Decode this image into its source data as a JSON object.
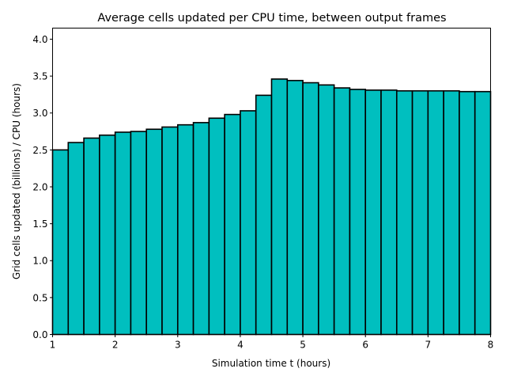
{
  "chart_data": {
    "type": "bar",
    "title": "Average cells updated per CPU time, between output frames",
    "xlabel": "Simulation time t (hours)",
    "ylabel": "Grid cells updated (billions) / CPU (hours)",
    "xlim": [
      1,
      8
    ],
    "ylim": [
      0,
      4.15
    ],
    "xticks": [
      "1",
      "2",
      "3",
      "4",
      "5",
      "6",
      "7",
      "8"
    ],
    "yticks": [
      "0.0",
      "0.5",
      "1.0",
      "1.5",
      "2.0",
      "2.5",
      "3.0",
      "3.5",
      "4.0"
    ],
    "bin_width": 0.25,
    "x": [
      1.0,
      1.25,
      1.5,
      1.75,
      2.0,
      2.25,
      2.5,
      2.75,
      3.0,
      3.25,
      3.5,
      3.75,
      4.0,
      4.25,
      4.5,
      4.75,
      5.0,
      5.25,
      5.5,
      5.75,
      6.0,
      6.25,
      6.5,
      6.75,
      7.0,
      7.25,
      7.5,
      7.75
    ],
    "values": [
      2.5,
      2.6,
      2.66,
      2.7,
      2.74,
      2.75,
      2.78,
      2.81,
      2.84,
      2.87,
      2.93,
      2.98,
      3.03,
      3.24,
      3.46,
      3.44,
      3.41,
      3.38,
      3.34,
      3.32,
      3.31,
      3.31,
      3.3,
      3.3,
      3.3,
      3.3,
      3.29,
      3.29
    ],
    "bar_color": "#00bfbf",
    "edge_color": "#000000",
    "grid": false
  }
}
